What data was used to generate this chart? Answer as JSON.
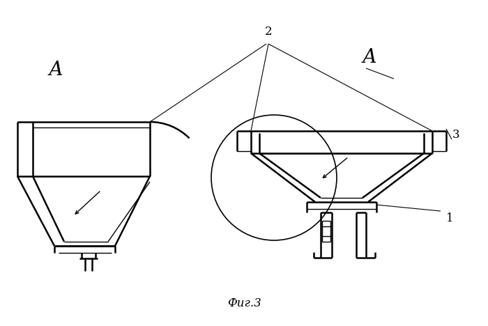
{
  "bg_color": "#ffffff",
  "line_color": "#000000",
  "fig_label": "Фиг.3",
  "label_A_left": "А",
  "label_A_right": "А",
  "label_1": "1",
  "label_2": "2",
  "label_3": "3",
  "figsize": [
    7.0,
    4.68
  ],
  "dpi": 100
}
